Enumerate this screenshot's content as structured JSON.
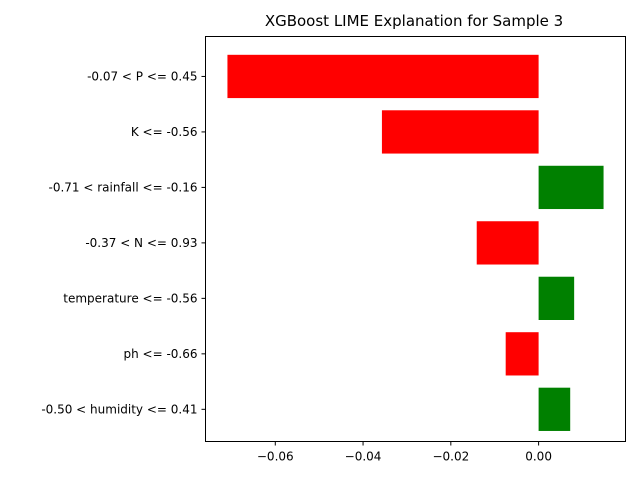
{
  "chart_data": {
    "type": "bar",
    "orientation": "horizontal",
    "title": "XGBoost LIME Explanation for Sample 3",
    "xlabel": "",
    "ylabel": "",
    "categories": [
      "-0.07 < P <= 0.45",
      "K <= -0.56",
      "-0.71 < rainfall <= -0.16",
      "-0.37 < N <= 0.93",
      "temperature <= -0.56",
      "ph <= -0.66",
      "-0.50 < humidity <= 0.41"
    ],
    "values": [
      -0.0709,
      -0.0357,
      0.0148,
      -0.0141,
      0.0081,
      -0.0075,
      0.0072
    ],
    "xlim": [
      -0.0759,
      0.0198
    ],
    "xticks": [
      -0.06,
      -0.04,
      -0.02,
      0.0
    ],
    "xtick_labels": [
      "−0.06",
      "−0.04",
      "−0.02",
      "0.00"
    ],
    "grid": false,
    "colors": {
      "positive": "#008000",
      "negative": "#ff0000",
      "axis": "#000000"
    }
  }
}
